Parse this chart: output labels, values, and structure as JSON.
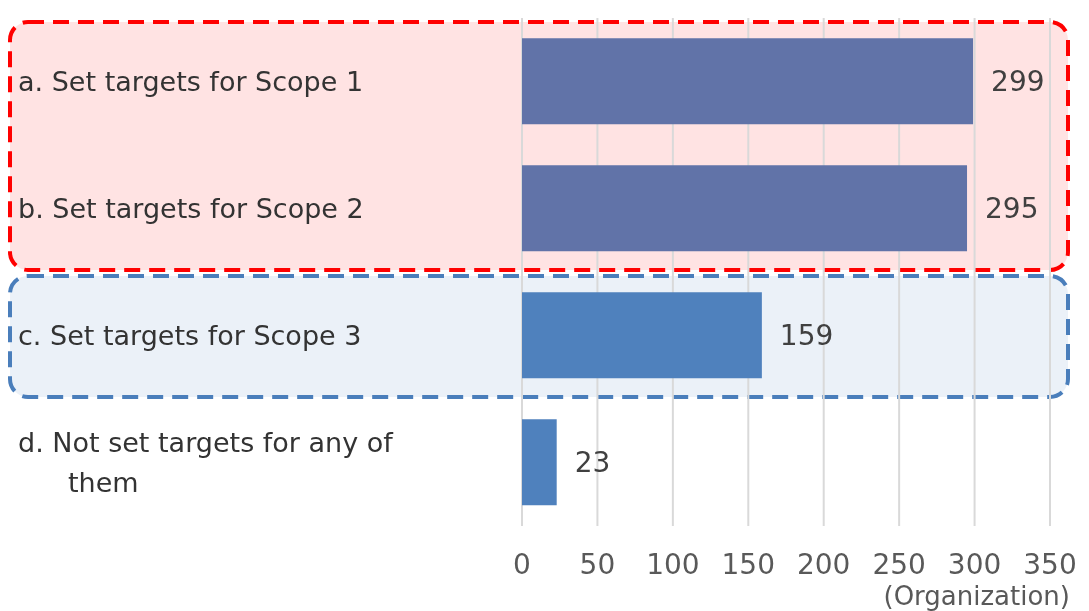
{
  "chart_data": {
    "type": "bar",
    "orientation": "horizontal",
    "categories": [
      "a. Set targets for Scope 1",
      "b. Set targets for Scope 2",
      "c. Set targets for Scope 3",
      "d. Not set targets for any of them"
    ],
    "values": [
      299,
      295,
      159,
      23
    ],
    "colors": [
      "#6173a8",
      "#6173a8",
      "#4f81bd",
      "#4f81bd"
    ],
    "xlim": [
      0,
      350
    ],
    "xticks": [
      0,
      50,
      100,
      150,
      200,
      250,
      300,
      350
    ],
    "grid": "x",
    "data_labels": true,
    "xlabel": "(Organization)",
    "bands": [
      {
        "axis": "y",
        "from": "a. Set targets for Scope 1",
        "to": "b. Set targets for Scope 2",
        "color": "#ff0000"
      },
      {
        "axis": "y",
        "from": "c. Set targets for Scope 3",
        "to": "c. Set targets for Scope 3",
        "color": "#4a7ebb"
      }
    ]
  }
}
